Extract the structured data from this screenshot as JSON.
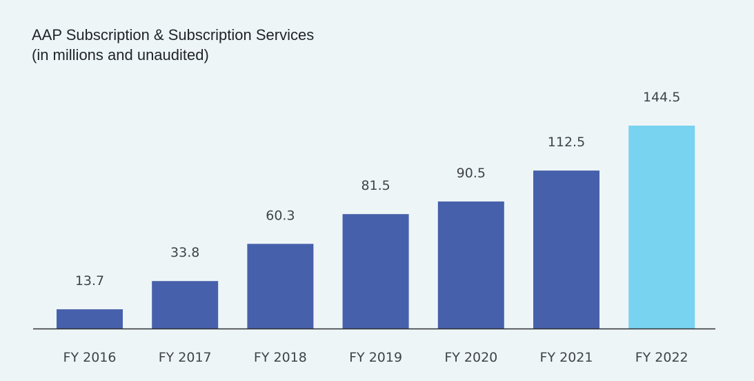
{
  "chart_data": {
    "type": "bar",
    "title": "AAP Subscription & Subscription Services",
    "subtitle": "(in millions and unaudited)",
    "categories": [
      "FY 2016",
      "FY 2017",
      "FY 2018",
      "FY 2019",
      "FY 2020",
      "FY 2021",
      "FY 2022"
    ],
    "values": [
      13.7,
      33.8,
      60.3,
      81.5,
      90.5,
      112.5,
      144.5
    ],
    "value_labels": [
      "13.7",
      "33.8",
      "60.3",
      "81.5",
      "90.5",
      "112.5",
      "144.5"
    ],
    "ylim": [
      0,
      144.5
    ],
    "grid": false,
    "legend": "none",
    "colors": {
      "default": "#4660ab",
      "highlight": "#78d3f0",
      "baseline": "#2f3033"
    },
    "highlight_index": 6
  }
}
